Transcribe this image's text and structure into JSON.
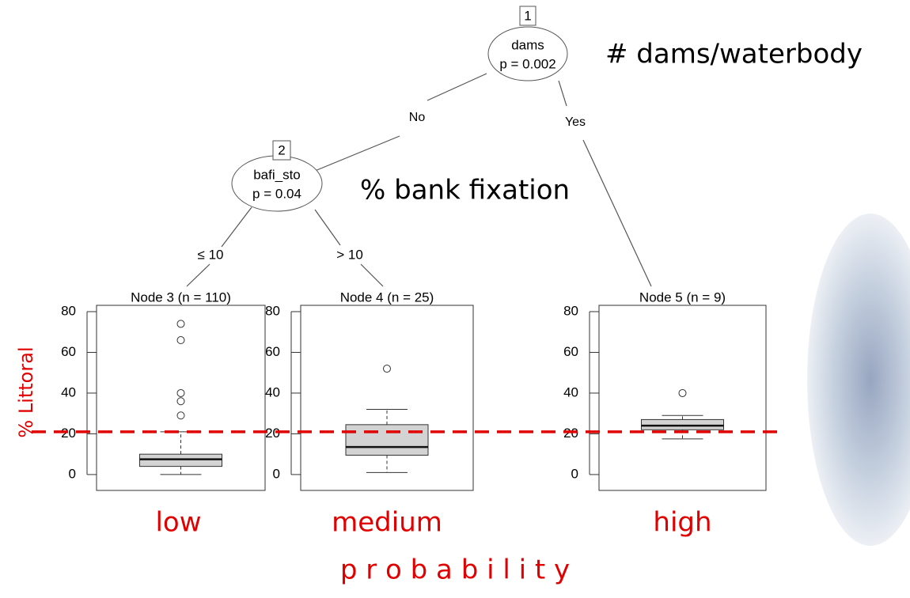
{
  "tree": {
    "nodes": [
      {
        "id": "1",
        "variable": "dams",
        "p": "p = 0.002"
      },
      {
        "id": "2",
        "variable": "bafi_sto",
        "p": "p = 0.04"
      }
    ],
    "edges": [
      "No",
      "Yes",
      "≤ 10",
      "> 10"
    ],
    "annotations": [
      "# dams/waterbody",
      "% bank fixation"
    ]
  },
  "y_label": "% Littoral",
  "x_label": "p r o b a b i l i t y",
  "reference_line": {
    "value": 21,
    "color": "#e00000"
  },
  "chart_data": [
    {
      "type": "boxplot",
      "title": "Node 3 (n = 110)",
      "category": "low",
      "color": "#d3d3d3",
      "ylim": [
        -7.8,
        83.1
      ],
      "yticks": [
        0,
        20,
        40,
        60,
        80
      ],
      "whisker_low": 0,
      "q1": 4,
      "median": 7.5,
      "q3": 10,
      "whisker_high": 21,
      "outliers": [
        74,
        66,
        40,
        36,
        29
      ]
    },
    {
      "type": "boxplot",
      "title": "Node 4 (n = 25)",
      "category": "medium",
      "color": "#d3d3d3",
      "ylim": [
        -7.8,
        83.1
      ],
      "yticks": [
        0,
        20,
        40,
        60,
        80
      ],
      "whisker_low": 1,
      "q1": 9.5,
      "median": 13.5,
      "q3": 24.5,
      "whisker_high": 32,
      "outliers": [
        52
      ]
    },
    {
      "type": "boxplot",
      "title": "Node 5 (n = 9)",
      "category": "high",
      "color": "#d3d3d3",
      "ylim": [
        -7.8,
        83.1
      ],
      "yticks": [
        0,
        20,
        40,
        60,
        80
      ],
      "whisker_low": 17.5,
      "q1": 22,
      "median": 24,
      "q3": 27,
      "whisker_high": 29,
      "outliers": [
        40
      ]
    }
  ]
}
